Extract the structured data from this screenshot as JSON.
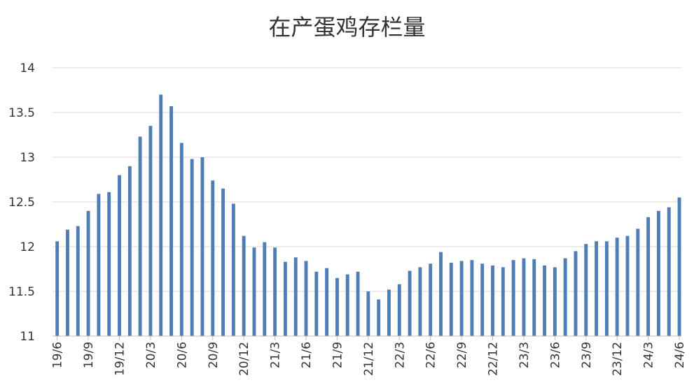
{
  "chart_data": {
    "type": "bar",
    "title": "在产蛋鸡存栏量",
    "xlabel": "",
    "ylabel": "",
    "ylim": [
      11,
      14
    ],
    "yticks": [
      "11",
      "11.5",
      "12",
      "12.5",
      "13",
      "13.5",
      "14"
    ],
    "grid": true,
    "legend": "none",
    "bar_color": "#4F7DB5",
    "grid_color": "#D9D9D9",
    "categories": [
      "19/6",
      "19/7",
      "19/8",
      "19/9",
      "19/10",
      "19/11",
      "19/12",
      "20/1",
      "20/2",
      "20/3",
      "20/4",
      "20/5",
      "20/6",
      "20/7",
      "20/8",
      "20/9",
      "20/10",
      "20/11",
      "20/12",
      "21/1",
      "21/2",
      "21/3",
      "21/4",
      "21/5",
      "21/6",
      "21/7",
      "21/8",
      "21/9",
      "21/10",
      "21/11",
      "21/12",
      "22/1",
      "22/2",
      "22/3",
      "22/4",
      "22/5",
      "22/6",
      "22/7",
      "22/8",
      "22/9",
      "22/10",
      "22/11",
      "22/12",
      "23/1",
      "23/2",
      "23/3",
      "23/4",
      "23/5",
      "23/6",
      "23/7",
      "23/8",
      "23/9",
      "23/10",
      "23/11",
      "23/12",
      "24/1",
      "24/2",
      "24/3",
      "24/4",
      "24/5",
      "24/6"
    ],
    "tick_labels": [
      "19/6",
      "19/9",
      "19/12",
      "20/3",
      "20/6",
      "20/9",
      "20/12",
      "21/3",
      "21/6",
      "21/9",
      "21/12",
      "22/3",
      "22/6",
      "22/9",
      "22/12",
      "23/3",
      "23/6",
      "23/9",
      "23/12",
      "24/3",
      "24/6"
    ],
    "values": [
      12.06,
      12.19,
      12.23,
      12.4,
      12.59,
      12.61,
      12.8,
      12.9,
      13.23,
      13.35,
      13.7,
      13.57,
      13.16,
      12.98,
      13.0,
      12.74,
      12.65,
      12.48,
      12.12,
      11.99,
      12.05,
      11.99,
      11.83,
      11.88,
      11.84,
      11.72,
      11.76,
      11.65,
      11.69,
      11.72,
      11.5,
      11.41,
      11.52,
      11.58,
      11.73,
      11.77,
      11.81,
      11.94,
      11.82,
      11.84,
      11.85,
      11.81,
      11.79,
      11.77,
      11.85,
      11.87,
      11.86,
      11.79,
      11.77,
      11.87,
      11.95,
      12.03,
      12.06,
      12.06,
      12.1,
      12.12,
      12.2,
      12.33,
      12.4,
      12.44,
      12.55
    ]
  }
}
